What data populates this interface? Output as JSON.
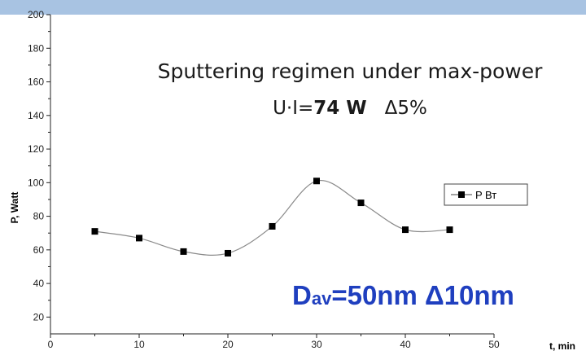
{
  "chart_data": {
    "type": "scatter",
    "xlabel": "t, min",
    "ylabel": "P, Watt",
    "xlim": [
      0,
      50
    ],
    "ylim": [
      10,
      200
    ],
    "x_ticks": [
      0,
      10,
      20,
      30,
      40,
      50
    ],
    "y_ticks": [
      20,
      40,
      60,
      80,
      100,
      120,
      140,
      160,
      180,
      200
    ],
    "grid": false,
    "legend_position": "right",
    "series": [
      {
        "name": "P Вт",
        "marker": "square",
        "smooth_line": true,
        "x": [
          5,
          10,
          15,
          20,
          25,
          30,
          35,
          40,
          45
        ],
        "y": [
          71,
          67,
          59,
          58,
          74,
          101,
          88,
          72,
          72
        ]
      }
    ]
  },
  "annotations": {
    "title_line1": "Sputtering regimen under max-power",
    "title_line2_prefix": "U·I=",
    "title_line2_bold": "74 W",
    "title_line2_suffix": "Δ5%",
    "dav_main": "D",
    "dav_sub": "av",
    "dav_rest": "=50nm Δ10nm"
  },
  "colors": {
    "band": "#a8c3e2",
    "marker": "#000000",
    "line": "#8a8a8a",
    "dav_text": "#1f3fbf"
  }
}
